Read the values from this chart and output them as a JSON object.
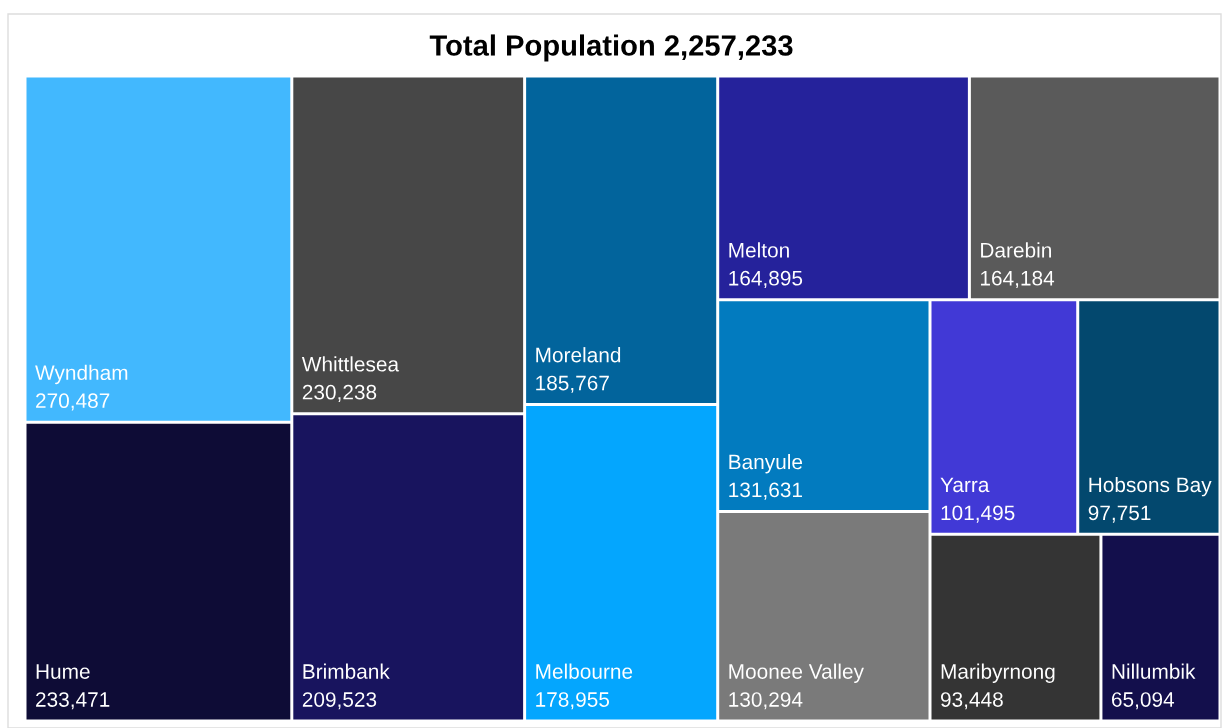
{
  "chart_data": {
    "type": "other",
    "title": "Total Population 2,257,233",
    "categories": [
      "Wyndham",
      "Hume",
      "Whittlesea",
      "Brimbank",
      "Moreland",
      "Melbourne",
      "Melton",
      "Darebin",
      "Banyule",
      "Moonee Valley",
      "Yarra",
      "Hobsons Bay",
      "Maribyrnong",
      "Nillumbik"
    ],
    "values": [
      270487,
      233471,
      230238,
      209523,
      185767,
      178955,
      164895,
      164184,
      131631,
      130294,
      101495,
      97751,
      93448,
      65094
    ],
    "colors": [
      "#42b8fe",
      "#0e0c36",
      "#474747",
      "#18145e",
      "#02649c",
      "#04a6fe",
      "#25229b",
      "#5a5a5a",
      "#027bbf",
      "#7a7a7a",
      "#4139d6",
      "#03486e",
      "#343434",
      "#130f4c"
    ],
    "value_labels": [
      "270,487",
      "233,471",
      "230,238",
      "209,523",
      "185,767",
      "178,955",
      "164,895",
      "164,184",
      "131,631",
      "130,294",
      "101,495",
      "97,751",
      "93,448",
      "65,094"
    ]
  }
}
